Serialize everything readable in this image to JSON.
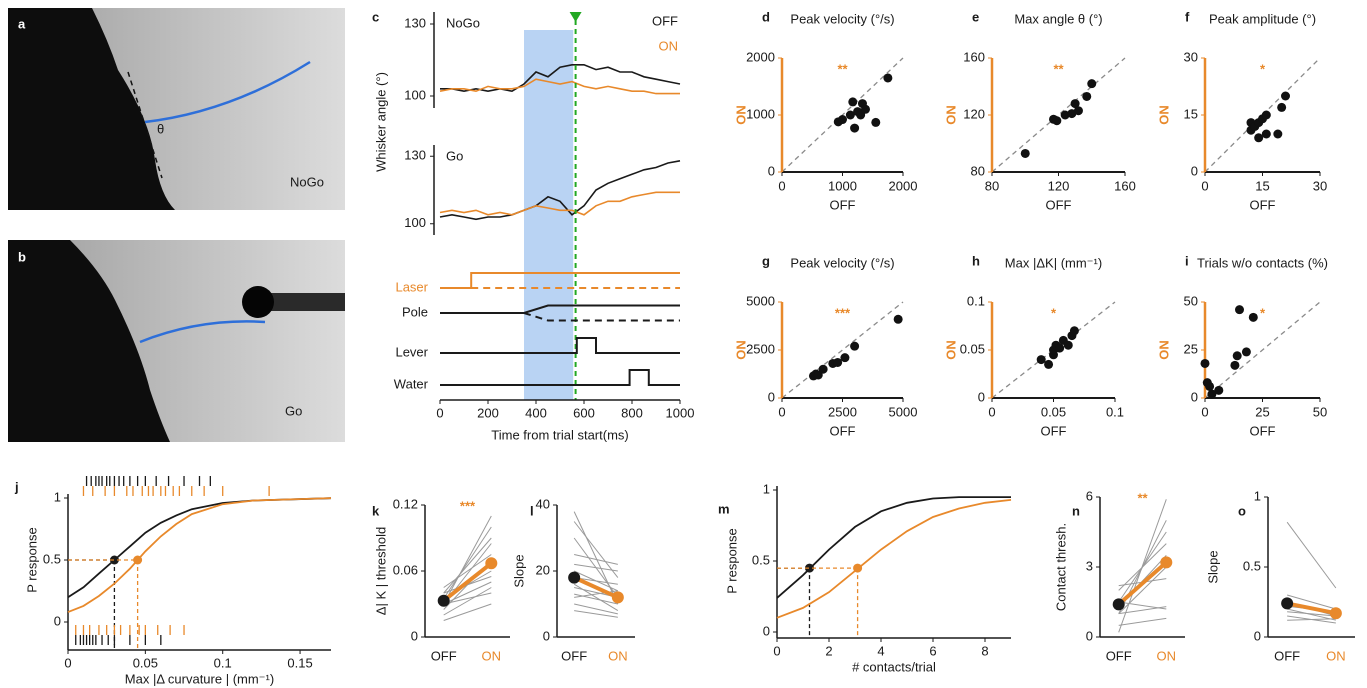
{
  "chart_data": [
    {
      "type": "image",
      "label": "a",
      "annotations": [
        "θ",
        "NoGo"
      ]
    },
    {
      "type": "image",
      "label": "b",
      "annotations": [
        "Go"
      ]
    },
    {
      "type": "line",
      "label": "c",
      "title": "NoGo",
      "ylabel": "Whisker angle (°)",
      "x": [
        0,
        50,
        100,
        150,
        200,
        250,
        300,
        350,
        400,
        450,
        500,
        550,
        600,
        650,
        700,
        750,
        800,
        850,
        900,
        950,
        1000
      ],
      "ylim": [
        95,
        135
      ],
      "yticks": [
        100,
        130
      ],
      "series": [
        {
          "name": "OFF",
          "color": "#1a1a1a",
          "values": [
            103,
            103,
            102,
            103,
            102,
            103,
            102,
            105,
            110,
            108,
            112,
            113,
            113,
            111,
            112,
            110,
            110,
            108,
            107,
            106,
            105
          ]
        },
        {
          "name": "ON",
          "color": "#e8892b",
          "values": [
            102,
            103,
            103,
            102,
            104,
            103,
            103,
            104,
            107,
            106,
            105,
            106,
            104,
            103,
            104,
            103,
            102,
            102,
            101,
            101,
            101
          ]
        }
      ]
    },
    {
      "type": "line",
      "title": "Go",
      "x": [
        0,
        50,
        100,
        150,
        200,
        250,
        300,
        350,
        400,
        450,
        500,
        550,
        600,
        650,
        700,
        750,
        800,
        850,
        900,
        950,
        1000
      ],
      "ylim": [
        95,
        135
      ],
      "yticks": [
        100,
        130
      ],
      "series": [
        {
          "color": "#1a1a1a",
          "values": [
            103,
            104,
            103,
            102,
            103,
            103,
            104,
            106,
            108,
            112,
            110,
            104,
            108,
            115,
            118,
            120,
            122,
            124,
            125,
            127,
            128
          ]
        },
        {
          "color": "#e8892b",
          "values": [
            105,
            106,
            105,
            106,
            104,
            105,
            104,
            106,
            108,
            107,
            106,
            106,
            104,
            108,
            110,
            110,
            112,
            113,
            114,
            114,
            114
          ]
        }
      ]
    },
    {
      "type": "timeline",
      "xlabel": "Time from trial start(ms)",
      "xlim": [
        0,
        1000
      ],
      "xticks": [
        0,
        200,
        400,
        600,
        800,
        1000
      ],
      "shade": [
        350,
        555
      ],
      "shade_color": "#b9d3f3",
      "cue": 565,
      "cue_color": "#22a822",
      "traces": [
        {
          "name": "Laser",
          "color": "#e8892b",
          "x": [
            0,
            130,
            130,
            1000
          ],
          "values": [
            0,
            0,
            1,
            1
          ],
          "dashed_x": [
            130,
            1000
          ],
          "dashed_values": [
            0,
            0
          ]
        },
        {
          "name": "Pole",
          "color": "#1a1a1a",
          "x": [
            0,
            350,
            450,
            1000
          ],
          "values": [
            0,
            0,
            0.5,
            0.5
          ],
          "dashed_x": [
            350,
            450,
            1000
          ],
          "dashed_values": [
            0,
            -0.5,
            -0.5
          ]
        },
        {
          "name": "Lever",
          "color": "#1a1a1a",
          "x": [
            0,
            570,
            570,
            650,
            650,
            1000
          ],
          "values": [
            0,
            0,
            1,
            1,
            0,
            0
          ]
        },
        {
          "name": "Water",
          "color": "#1a1a1a",
          "x": [
            0,
            790,
            790,
            870,
            870,
            1000
          ],
          "values": [
            0,
            0,
            1,
            1,
            0,
            0
          ]
        }
      ]
    },
    {
      "type": "scatter",
      "label": "d",
      "title": "Peak velocity (°/s)",
      "xlabel": "OFF",
      "ylabel": "ON",
      "stars": "**",
      "axis_color": "#e8892b",
      "color": "#111111",
      "xlim": [
        0,
        2000
      ],
      "ylim": [
        0,
        2000
      ],
      "xticks": [
        0,
        1000,
        2000
      ],
      "yticks": [
        0,
        1000,
        2000
      ],
      "x": [
        930,
        1000,
        1130,
        1170,
        1200,
        1250,
        1300,
        1330,
        1380,
        1550,
        1750
      ],
      "values": [
        880,
        920,
        1000,
        1230,
        770,
        1060,
        1000,
        1200,
        1100,
        870,
        1650
      ]
    },
    {
      "type": "scatter",
      "label": "e",
      "title": "Max angle θ (°)",
      "xlabel": "OFF",
      "ylabel": "ON",
      "stars": "**",
      "axis_color": "#e8892b",
      "color": "#111111",
      "xlim": [
        80,
        160
      ],
      "ylim": [
        80,
        160
      ],
      "xticks": [
        80,
        120,
        160
      ],
      "yticks": [
        80,
        120,
        160
      ],
      "x": [
        100,
        117,
        119,
        124,
        128,
        130,
        132,
        137,
        140
      ],
      "values": [
        93,
        117,
        116,
        120,
        121,
        128,
        123,
        133,
        142
      ]
    },
    {
      "type": "scatter",
      "label": "f",
      "title": "Peak amplitude (°)",
      "xlabel": "OFF",
      "ylabel": "ON",
      "stars": "*",
      "axis_color": "#e8892b",
      "color": "#111111",
      "xlim": [
        0,
        30
      ],
      "ylim": [
        0,
        30
      ],
      "xticks": [
        0,
        15,
        30
      ],
      "yticks": [
        0,
        15,
        30
      ],
      "x": [
        12,
        12,
        13,
        14,
        14,
        15,
        16,
        16,
        19,
        20,
        21
      ],
      "values": [
        13,
        11,
        12,
        9,
        13,
        14,
        15,
        10,
        10,
        17,
        20
      ]
    },
    {
      "type": "scatter",
      "label": "g",
      "title": "Peak velocity (°/s)",
      "xlabel": "OFF",
      "ylabel": "ON",
      "stars": "***",
      "axis_color": "#e8892b",
      "color": "#111111",
      "xlim": [
        0,
        5000
      ],
      "ylim": [
        0,
        5000
      ],
      "xticks": [
        0,
        2500,
        5000
      ],
      "yticks": [
        0,
        2500,
        5000
      ],
      "x": [
        1300,
        1400,
        1500,
        1700,
        2100,
        2300,
        2600,
        3000,
        4800
      ],
      "values": [
        1150,
        1250,
        1200,
        1500,
        1800,
        1850,
        2100,
        2700,
        4100
      ]
    },
    {
      "type": "scatter",
      "label": "h",
      "title": "Max |ΔK| (mm⁻¹)",
      "xlabel": "OFF",
      "ylabel": "ON",
      "stars": "*",
      "axis_color": "#e8892b",
      "color": "#111111",
      "xlim": [
        0,
        0.1
      ],
      "ylim": [
        0,
        0.1
      ],
      "xticks": [
        0,
        0.05,
        0.1
      ],
      "yticks": [
        0,
        0.05,
        0.1
      ],
      "x": [
        0.04,
        0.046,
        0.05,
        0.05,
        0.052,
        0.055,
        0.058,
        0.062,
        0.065,
        0.067
      ],
      "values": [
        0.04,
        0.035,
        0.045,
        0.05,
        0.055,
        0.052,
        0.06,
        0.055,
        0.065,
        0.07
      ]
    },
    {
      "type": "scatter",
      "label": "i",
      "title": "Trials w/o contacts (%)",
      "xlabel": "OFF",
      "ylabel": "ON",
      "stars": "*",
      "axis_color": "#e8892b",
      "color": "#111111",
      "xlim": [
        0,
        50
      ],
      "ylim": [
        0,
        50
      ],
      "xticks": [
        0,
        25,
        50
      ],
      "yticks": [
        0,
        25,
        50
      ],
      "x": [
        0,
        1,
        2,
        3,
        6,
        13,
        14,
        15,
        18,
        21
      ],
      "values": [
        18,
        8,
        6,
        2,
        4,
        17,
        22,
        46,
        24,
        42
      ]
    },
    {
      "type": "sigmoid",
      "label": "j",
      "ylabel": "P response",
      "xlabel": "Max |Δ curvature | (mm⁻¹)",
      "xlim": [
        0,
        0.17
      ],
      "xticks": [
        0,
        0.05,
        0.1,
        0.15
      ],
      "ylim": [
        0,
        1
      ],
      "yticks": [
        0,
        0.5,
        1
      ],
      "x": [
        0,
        0.01,
        0.02,
        0.03,
        0.04,
        0.05,
        0.06,
        0.07,
        0.08,
        0.1,
        0.12,
        0.17
      ],
      "series": [
        {
          "color": "#1a1a1a",
          "values": [
            0.2,
            0.28,
            0.39,
            0.5,
            0.61,
            0.72,
            0.8,
            0.86,
            0.91,
            0.96,
            0.98,
            0.998
          ],
          "marker": [
            0.03,
            0.5
          ],
          "raster_hit": [
            0.012,
            0.015,
            0.018,
            0.02,
            0.022,
            0.025,
            0.027,
            0.03,
            0.033,
            0.036,
            0.04,
            0.045,
            0.05,
            0.057,
            0.065,
            0.075,
            0.085,
            0.092
          ],
          "raster_miss": [
            0.005,
            0.008,
            0.01,
            0.012,
            0.014,
            0.016,
            0.018,
            0.022,
            0.026,
            0.03,
            0.04,
            0.05,
            0.06
          ]
        },
        {
          "color": "#e8892b",
          "values": [
            0.08,
            0.13,
            0.21,
            0.31,
            0.43,
            0.57,
            0.69,
            0.79,
            0.87,
            0.95,
            0.98,
            0.999
          ],
          "marker": [
            0.045,
            0.5
          ],
          "raster_hit": [
            0.01,
            0.016,
            0.024,
            0.03,
            0.038,
            0.042,
            0.048,
            0.052,
            0.055,
            0.06,
            0.063,
            0.068,
            0.072,
            0.08,
            0.088,
            0.1,
            0.13
          ],
          "raster_miss": [
            0.005,
            0.01,
            0.014,
            0.02,
            0.025,
            0.03,
            0.034,
            0.04,
            0.046,
            0.05,
            0.058,
            0.066,
            0.075
          ]
        }
      ]
    },
    {
      "type": "paired",
      "label": "k",
      "ylabel": "Δ| K | threshold",
      "stars": "***",
      "categories": [
        "OFF",
        "ON"
      ],
      "colors": [
        "#1a1a1a",
        "#e8892b"
      ],
      "line_color": "#9a9a9a",
      "ylim": [
        0,
        0.12
      ],
      "yticks": [
        0,
        0.06,
        0.12
      ],
      "pairs": [
        [
          0.03,
          0.11
        ],
        [
          0.035,
          0.1
        ],
        [
          0.04,
          0.09
        ],
        [
          0.03,
          0.085
        ],
        [
          0.045,
          0.075
        ],
        [
          0.025,
          0.07
        ],
        [
          0.035,
          0.06
        ],
        [
          0.04,
          0.055
        ],
        [
          0.03,
          0.05
        ],
        [
          0.02,
          0.045
        ],
        [
          0.03,
          0.04
        ],
        [
          0.015,
          0.03
        ]
      ],
      "mean": [
        0.033,
        0.067
      ]
    },
    {
      "type": "paired",
      "label": "l",
      "ylabel": "Slope",
      "categories": [
        "OFF",
        "ON"
      ],
      "colors": [
        "#1a1a1a",
        "#e8892b"
      ],
      "line_color": "#9a9a9a",
      "ylim": [
        0,
        40
      ],
      "yticks": [
        0,
        20,
        40
      ],
      "pairs": [
        [
          38,
          10
        ],
        [
          35,
          18
        ],
        [
          30,
          12
        ],
        [
          25,
          22
        ],
        [
          22,
          20
        ],
        [
          20,
          14
        ],
        [
          18,
          16
        ],
        [
          16,
          8
        ],
        [
          15,
          12
        ],
        [
          13,
          10
        ],
        [
          12,
          14
        ],
        [
          10,
          7
        ],
        [
          8,
          6
        ]
      ],
      "mean": [
        18,
        12
      ]
    },
    {
      "type": "sigmoid",
      "label": "m",
      "ylabel": "P response",
      "xlabel": "# contacts/trial",
      "xlim": [
        0,
        9
      ],
      "xticks": [
        0,
        2,
        4,
        6,
        8
      ],
      "ylim": [
        0,
        1
      ],
      "yticks": [
        0,
        0.5,
        1
      ],
      "x": [
        0,
        1,
        2,
        3,
        4,
        5,
        6,
        7,
        8,
        9
      ],
      "series": [
        {
          "color": "#1a1a1a",
          "values": [
            0.24,
            0.4,
            0.58,
            0.74,
            0.85,
            0.91,
            0.94,
            0.95,
            0.95,
            0.95
          ],
          "marker": [
            1.25,
            0.45
          ]
        },
        {
          "color": "#e8892b",
          "values": [
            0.1,
            0.17,
            0.28,
            0.43,
            0.58,
            0.71,
            0.81,
            0.87,
            0.91,
            0.93
          ],
          "marker": [
            3.1,
            0.45
          ]
        }
      ]
    },
    {
      "type": "paired",
      "label": "n",
      "ylabel": "Contact thresh.",
      "stars": "**",
      "categories": [
        "OFF",
        "ON"
      ],
      "colors": [
        "#1a1a1a",
        "#e8892b"
      ],
      "line_color": "#9a9a9a",
      "ylim": [
        0,
        6
      ],
      "yticks": [
        0,
        3,
        6
      ],
      "pairs": [
        [
          0.2,
          5.9
        ],
        [
          1,
          5
        ],
        [
          1.5,
          4.5
        ],
        [
          2,
          4
        ],
        [
          1.3,
          3.5
        ],
        [
          1,
          3
        ],
        [
          2.2,
          2.5
        ],
        [
          1,
          1.3
        ],
        [
          1.5,
          1.2
        ],
        [
          0.5,
          0.8
        ]
      ],
      "mean": [
        1.4,
        3.2
      ]
    },
    {
      "type": "paired",
      "label": "o",
      "ylabel": "Slope",
      "categories": [
        "OFF",
        "ON"
      ],
      "colors": [
        "#1a1a1a",
        "#e8892b"
      ],
      "line_color": "#9a9a9a",
      "ylim": [
        0,
        1
      ],
      "yticks": [
        0,
        0.5,
        1
      ],
      "pairs": [
        [
          0.82,
          0.35
        ],
        [
          0.3,
          0.2
        ],
        [
          0.25,
          0.15
        ],
        [
          0.22,
          0.18
        ],
        [
          0.2,
          0.12
        ],
        [
          0.18,
          0.15
        ],
        [
          0.15,
          0.1
        ],
        [
          0.12,
          0.13
        ]
      ],
      "mean": [
        0.24,
        0.17
      ]
    }
  ]
}
